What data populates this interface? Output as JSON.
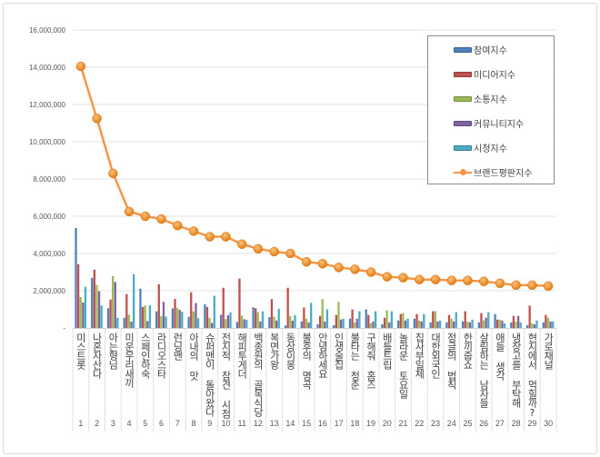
{
  "chart_data": {
    "type": "bar+line",
    "categories": [
      "미스트롯",
      "나혼자산다",
      "아는형님",
      "미운우리새끼",
      "스페인하숙",
      "라디오스타",
      "런닝맨",
      "아내의 맛",
      "슈퍼맨이 돌아왔다",
      "전지적 참견 시점",
      "해피투게더",
      "백종원의 골목식당",
      "복면가왕",
      "동상이몽",
      "불후의 명곡",
      "안녕하세요",
      "인생술집",
      "불타는 청춘",
      "구해줘 홈즈",
      "배틀트립",
      "놀라운 토요일",
      "집사부일체",
      "대한외국인",
      "정글의 법칙",
      "한끼줍쇼",
      "살림하는 남자들",
      "애들 생각",
      "냉장고를 부탁해",
      "현지에서 먹힐까?",
      "가로채널"
    ],
    "ranks": [
      "1",
      "2",
      "3",
      "4",
      "5",
      "6",
      "7",
      "8",
      "9",
      "10",
      "11",
      "12",
      "13",
      "14",
      "15",
      "16",
      "17",
      "18",
      "19",
      "20",
      "21",
      "22",
      "23",
      "24",
      "25",
      "26",
      "27",
      "28",
      "29",
      "30"
    ],
    "ylim": [
      0,
      16000000
    ],
    "yticks": [
      "-",
      "2,000,000",
      "4,000,000",
      "6,000,000",
      "8,000,000",
      "10,000,000",
      "12,000,000",
      "14,000,000",
      "16,000,000"
    ],
    "grid": true,
    "legend_position": "top-right",
    "series": [
      {
        "name": "참여지수",
        "type": "bar",
        "color": "#4f81bd",
        "values": [
          5370000,
          2690000,
          1060000,
          550000,
          2110000,
          890000,
          1050000,
          600000,
          1270000,
          710000,
          320000,
          1110000,
          580000,
          130000,
          350000,
          200000,
          150000,
          500000,
          1000000,
          200000,
          400000,
          500000,
          300000,
          300000,
          350000,
          300000,
          750000,
          300000,
          150000,
          300000
        ]
      },
      {
        "name": "미디어지수",
        "type": "bar",
        "color": "#c0504d",
        "values": [
          3420000,
          3130000,
          1530000,
          1820000,
          1130000,
          2350000,
          1560000,
          1920000,
          1130000,
          2160000,
          2650000,
          1060000,
          1550000,
          2160000,
          1100000,
          650000,
          700000,
          1000000,
          700000,
          550000,
          750000,
          750000,
          900000,
          700000,
          900000,
          800000,
          450000,
          650000,
          1200000,
          700000
        ]
      },
      {
        "name": "소통지수",
        "type": "bar",
        "color": "#9bbb59",
        "values": [
          1660000,
          2310000,
          2790000,
          710000,
          1210000,
          630000,
          1080000,
          890000,
          550000,
          480000,
          660000,
          850000,
          610000,
          640000,
          500000,
          1550000,
          1400000,
          300000,
          250000,
          950000,
          800000,
          400000,
          900000,
          500000,
          350000,
          400000,
          450000,
          350000,
          250000,
          550000
        ]
      },
      {
        "name": "커뮤니티지수",
        "type": "bar",
        "color": "#8064a2",
        "values": [
          1370000,
          1970000,
          2470000,
          340000,
          370000,
          1400000,
          970000,
          1340000,
          270000,
          690000,
          470000,
          350000,
          400000,
          390000,
          300000,
          350000,
          450000,
          500000,
          350000,
          300000,
          400000,
          350000,
          350000,
          350000,
          300000,
          550000,
          400000,
          650000,
          200000,
          350000
        ]
      },
      {
        "name": "시청지수",
        "type": "bar",
        "color": "#4bacc6",
        "values": [
          2210000,
          1210000,
          550000,
          2890000,
          1210000,
          610000,
          870000,
          520000,
          1730000,
          840000,
          440000,
          890000,
          1030000,
          690000,
          1350000,
          1000000,
          500000,
          900000,
          900000,
          900000,
          500000,
          750000,
          400000,
          850000,
          450000,
          850000,
          250000,
          300000,
          400000,
          350000
        ]
      },
      {
        "name": "브랜드평판지수",
        "type": "line",
        "color": "#f79646",
        "values": [
          14050000,
          11250000,
          8300000,
          6250000,
          6000000,
          5850000,
          5500000,
          5200000,
          4900000,
          4900000,
          4500000,
          4250000,
          4100000,
          4000000,
          3550000,
          3450000,
          3250000,
          3150000,
          3000000,
          2750000,
          2700000,
          2600000,
          2600000,
          2550000,
          2550000,
          2500000,
          2400000,
          2300000,
          2300000,
          2250000
        ]
      }
    ]
  }
}
